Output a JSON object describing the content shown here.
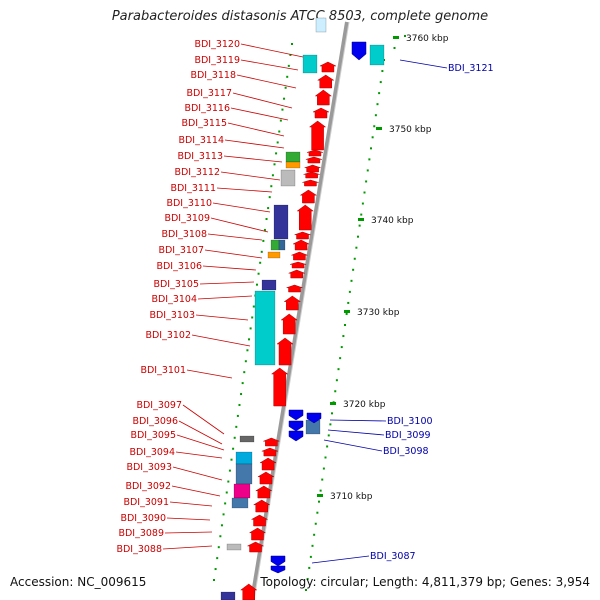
{
  "title": "Parabacteroides distasonis ATCC 8503, complete genome",
  "footer": {
    "accession": "Accession: NC_009615",
    "summary": "Topology: circular; Length: 4,811,379 bp; Genes: 3,954"
  },
  "colors": {
    "forward_gene": "#ff0000",
    "reverse_gene": "#0000ee",
    "forward_label": "#cc0000",
    "reverse_label": "#0000aa",
    "backbone": "#999999",
    "tick": "#009900",
    "cyan_feature": "#00cccc",
    "navy_feature": "#333399"
  },
  "scale_labels": [
    "3760 kbp",
    "3750 kbp",
    "3740 kbp",
    "3730 kbp",
    "3720 kbp",
    "3710 kbp"
  ],
  "forward_gene_labels": [
    "BDI_3120",
    "BDI_3119",
    "BDI_3118",
    "BDI_3117",
    "BDI_3116",
    "BDI_3115",
    "BDI_3114",
    "BDI_3113",
    "BDI_3112",
    "BDI_3111",
    "BDI_3110",
    "BDI_3109",
    "BDI_3108",
    "BDI_3107",
    "BDI_3106",
    "BDI_3105",
    "BDI_3104",
    "BDI_3103",
    "BDI_3102",
    "BDI_3101",
    "BDI_3097",
    "BDI_3096",
    "BDI_3095",
    "BDI_3094",
    "BDI_3093",
    "BDI_3092",
    "BDI_3091",
    "BDI_3090",
    "BDI_3089",
    "BDI_3088"
  ],
  "reverse_gene_labels": [
    "BDI_3121",
    "BDI_3100",
    "BDI_3099",
    "BDI_3098",
    "BDI_3087"
  ]
}
